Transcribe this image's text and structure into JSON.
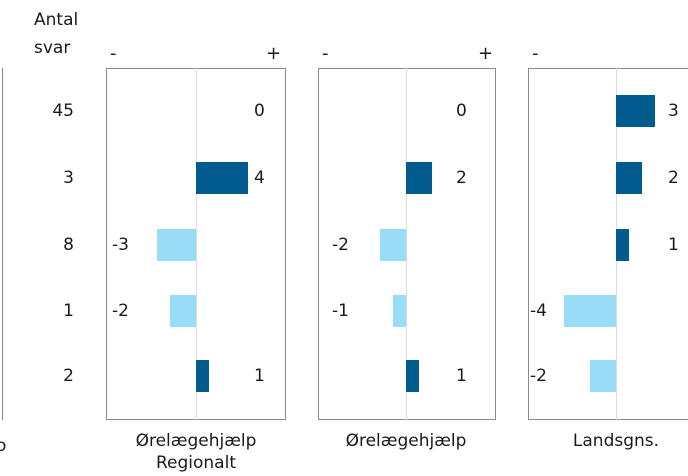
{
  "chart_data": {
    "type": "bar",
    "orientation": "horizontal",
    "count_header": [
      "Antal",
      "svar"
    ],
    "counts": [
      "45",
      "3",
      "8",
      "1",
      "2"
    ],
    "minus_sign": "-",
    "plus_sign": "+",
    "bar_colors": {
      "positive": "#005b8e",
      "negative": "#99dcf7"
    },
    "panels": [
      {
        "name_lines": [
          "Ørelægehjælp",
          "Regionalt"
        ],
        "values": [
          0,
          4,
          -3,
          -2,
          1
        ],
        "labels": [
          "0",
          "4",
          "-3",
          "-2",
          "1"
        ]
      },
      {
        "name_lines": [
          "Ørelægehjælp"
        ],
        "values": [
          0,
          2,
          -2,
          -1,
          1
        ],
        "labels": [
          "0",
          "2",
          "-2",
          "-1",
          "1"
        ]
      },
      {
        "name_lines": [
          "Landsgns."
        ],
        "values": [
          3,
          2,
          1,
          -4,
          -2
        ],
        "labels": [
          "3",
          "2",
          "1",
          "-4",
          "-2"
        ]
      }
    ],
    "cut_off_text": "o"
  }
}
